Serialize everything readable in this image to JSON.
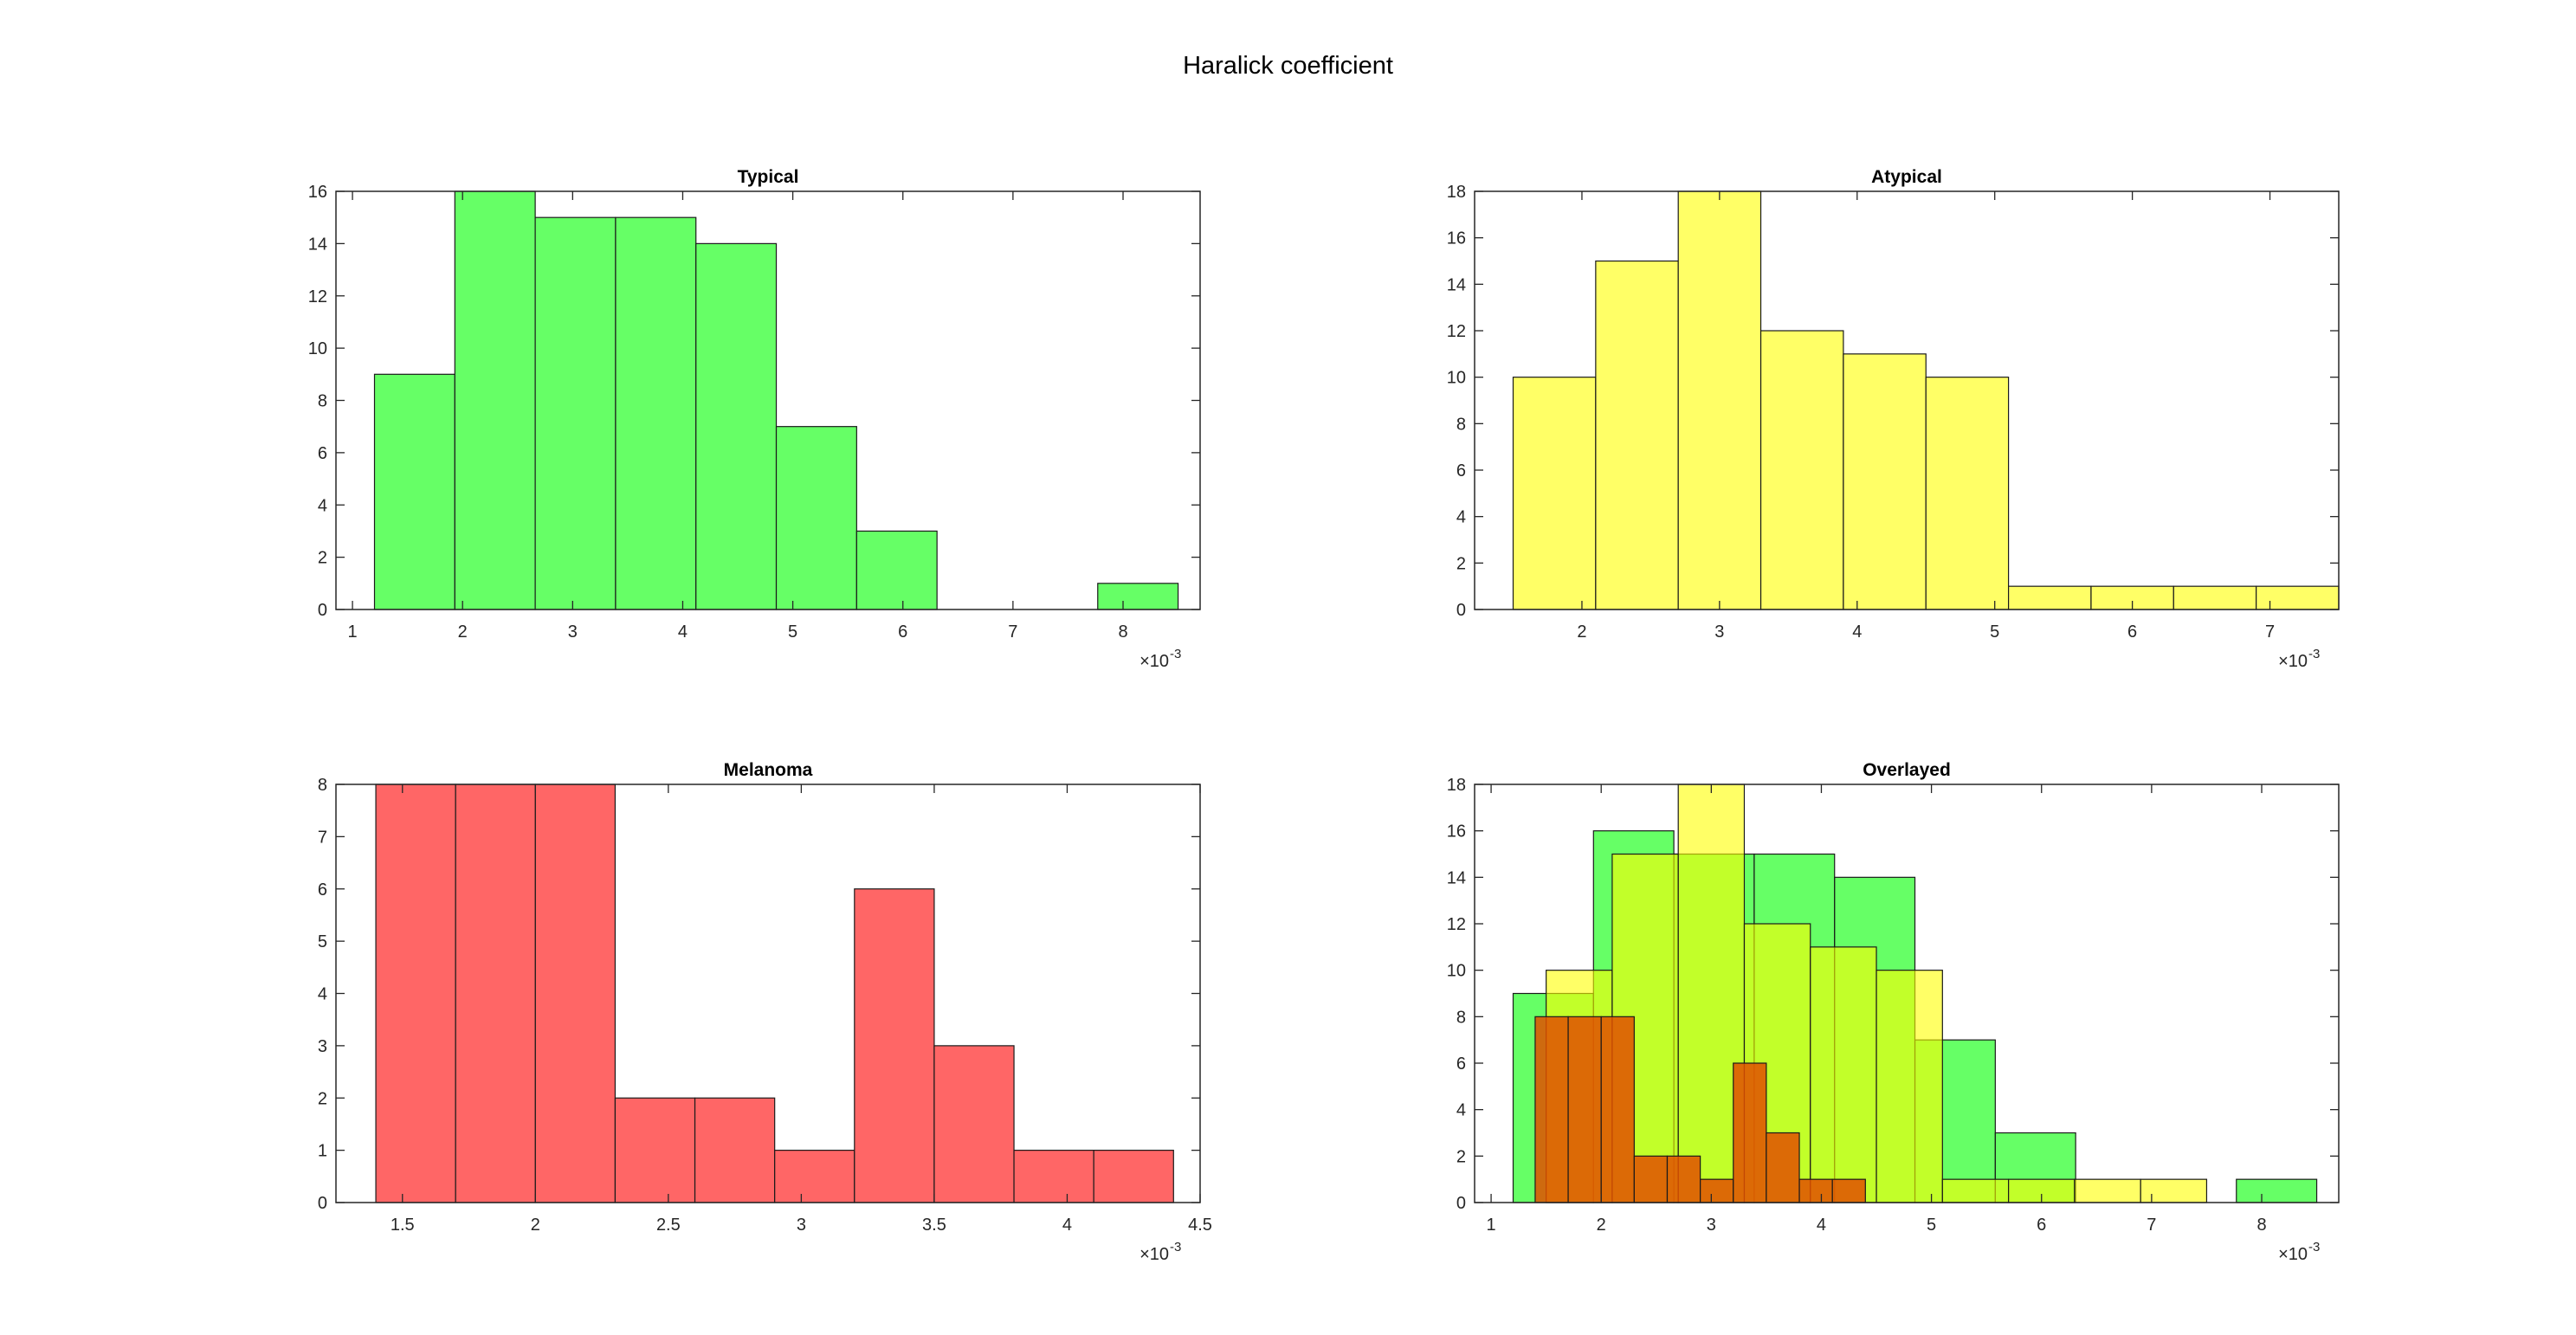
{
  "figure": {
    "title": "Haralick coefficient"
  },
  "chart_data": [
    {
      "id": "typical",
      "type": "bar",
      "title": "Typical",
      "xlim": [
        0.00085,
        0.0087
      ],
      "ylim": [
        0,
        16
      ],
      "xticks": [
        0.001,
        0.002,
        0.003,
        0.004,
        0.005,
        0.006,
        0.007,
        0.008
      ],
      "xtick_labels": [
        "1",
        "2",
        "3",
        "4",
        "5",
        "6",
        "7",
        "8"
      ],
      "yticks": [
        0,
        2,
        4,
        6,
        8,
        10,
        12,
        14,
        16
      ],
      "x_exponent_label": "×10",
      "x_exponent": "-3",
      "series": [
        {
          "name": "",
          "color": "#66ff66",
          "bins": [
            [
              0.0012,
              0.00193,
              9
            ],
            [
              0.00193,
              0.00266,
              16
            ],
            [
              0.00266,
              0.00339,
              15
            ],
            [
              0.00339,
              0.00412,
              15
            ],
            [
              0.00412,
              0.00485,
              14
            ],
            [
              0.00485,
              0.00558,
              7
            ],
            [
              0.00558,
              0.00631,
              3
            ],
            [
              0.00631,
              0.00704,
              0
            ],
            [
              0.00704,
              0.00777,
              0
            ],
            [
              0.00777,
              0.0085,
              1
            ]
          ]
        }
      ]
    },
    {
      "id": "atypical",
      "type": "bar",
      "title": "Atypical",
      "xlim": [
        0.00122,
        0.0075
      ],
      "ylim": [
        0,
        18
      ],
      "xticks": [
        0.002,
        0.003,
        0.004,
        0.005,
        0.006,
        0.007
      ],
      "xtick_labels": [
        "2",
        "3",
        "4",
        "5",
        "6",
        "7"
      ],
      "yticks": [
        0,
        2,
        4,
        6,
        8,
        10,
        12,
        14,
        16,
        18
      ],
      "x_exponent_label": "×10",
      "x_exponent": "-3",
      "series": [
        {
          "name": "",
          "color": "#ffff66",
          "bins": [
            [
              0.0015,
              0.0021,
              10
            ],
            [
              0.0021,
              0.0027,
              15
            ],
            [
              0.0027,
              0.0033,
              18
            ],
            [
              0.0033,
              0.0039,
              12
            ],
            [
              0.0039,
              0.0045,
              11
            ],
            [
              0.0045,
              0.0051,
              10
            ],
            [
              0.0051,
              0.0057,
              1
            ],
            [
              0.0057,
              0.0063,
              1
            ],
            [
              0.0063,
              0.0069,
              1
            ],
            [
              0.0069,
              0.0075,
              1
            ]
          ]
        }
      ]
    },
    {
      "id": "melanoma",
      "type": "bar",
      "title": "Melanoma",
      "xlim": [
        0.00125,
        0.0045
      ],
      "ylim": [
        0,
        8
      ],
      "xticks": [
        0.0015,
        0.002,
        0.0025,
        0.003,
        0.0035,
        0.004,
        0.0045
      ],
      "xtick_labels": [
        "1.5",
        "2",
        "2.5",
        "3",
        "3.5",
        "4",
        "4.5"
      ],
      "yticks": [
        0,
        1,
        2,
        3,
        4,
        5,
        6,
        7,
        8
      ],
      "x_exponent_label": "×10",
      "x_exponent": "-3",
      "series": [
        {
          "name": "",
          "color": "#ff6666",
          "bins": [
            [
              0.0014,
              0.0017,
              8
            ],
            [
              0.0017,
              0.002,
              8
            ],
            [
              0.002,
              0.0023,
              8
            ],
            [
              0.0023,
              0.0026,
              2
            ],
            [
              0.0026,
              0.0029,
              2
            ],
            [
              0.0029,
              0.0032,
              1
            ],
            [
              0.0032,
              0.0035,
              6
            ],
            [
              0.0035,
              0.0038,
              3
            ],
            [
              0.0038,
              0.0041,
              1
            ],
            [
              0.0041,
              0.0044,
              1
            ]
          ]
        }
      ]
    },
    {
      "id": "overlayed",
      "type": "bar",
      "title": "Overlayed",
      "xlim": [
        0.00085,
        0.0087
      ],
      "ylim": [
        0,
        18
      ],
      "xticks": [
        0.001,
        0.002,
        0.003,
        0.004,
        0.005,
        0.006,
        0.007,
        0.008
      ],
      "xtick_labels": [
        "1",
        "2",
        "3",
        "4",
        "5",
        "6",
        "7",
        "8"
      ],
      "yticks": [
        0,
        2,
        4,
        6,
        8,
        10,
        12,
        14,
        16,
        18
      ],
      "x_exponent_label": "×10",
      "x_exponent": "-3",
      "series": [
        {
          "name": "",
          "color": "#00ff00",
          "opacity": 0.6,
          "bins": [
            [
              0.0012,
              0.00193,
              9
            ],
            [
              0.00193,
              0.00266,
              16
            ],
            [
              0.00266,
              0.00339,
              15
            ],
            [
              0.00339,
              0.00412,
              15
            ],
            [
              0.00412,
              0.00485,
              14
            ],
            [
              0.00485,
              0.00558,
              7
            ],
            [
              0.00558,
              0.00631,
              3
            ],
            [
              0.00631,
              0.00704,
              0
            ],
            [
              0.00704,
              0.00777,
              0
            ],
            [
              0.00777,
              0.0085,
              1
            ]
          ]
        },
        {
          "name": "",
          "color": "#ffff00",
          "opacity": 0.6,
          "bins": [
            [
              0.0015,
              0.0021,
              10
            ],
            [
              0.0021,
              0.0027,
              15
            ],
            [
              0.0027,
              0.0033,
              18
            ],
            [
              0.0033,
              0.0039,
              12
            ],
            [
              0.0039,
              0.0045,
              11
            ],
            [
              0.0045,
              0.0051,
              10
            ],
            [
              0.0051,
              0.0057,
              1
            ],
            [
              0.0057,
              0.0063,
              1
            ],
            [
              0.0063,
              0.0069,
              1
            ],
            [
              0.0069,
              0.0075,
              1
            ]
          ]
        },
        {
          "name": "",
          "color": "#e05000",
          "opacity": 0.85,
          "bins": [
            [
              0.0014,
              0.0017,
              8
            ],
            [
              0.0017,
              0.002,
              8
            ],
            [
              0.002,
              0.0023,
              8
            ],
            [
              0.0023,
              0.0026,
              2
            ],
            [
              0.0026,
              0.0029,
              2
            ],
            [
              0.0029,
              0.0032,
              1
            ],
            [
              0.0032,
              0.0035,
              6
            ],
            [
              0.0035,
              0.0038,
              3
            ],
            [
              0.0038,
              0.0041,
              1
            ],
            [
              0.0041,
              0.0044,
              1
            ]
          ]
        }
      ]
    }
  ]
}
